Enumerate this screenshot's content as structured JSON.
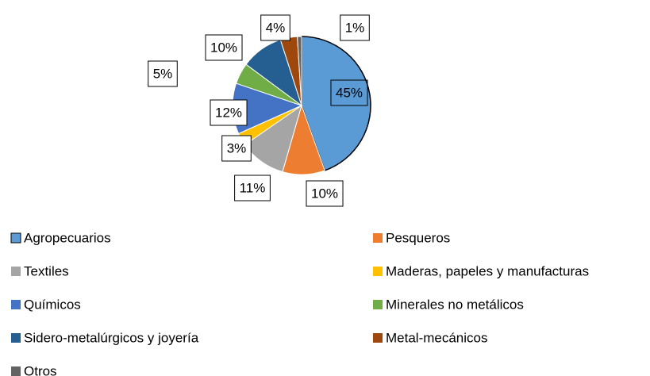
{
  "chart_data": {
    "type": "pie",
    "categories": [
      "Agropecuarios",
      "Pesqueros",
      "Textiles",
      "Maderas, papeles y manufacturas",
      "Químicos",
      "Minerales no metálicos",
      "Sidero-metalúrgicos y joyería",
      "Metal-mecánicos",
      "Otros"
    ],
    "values": [
      45,
      10,
      11,
      3,
      12,
      5,
      10,
      4,
      1
    ],
    "value_labels": [
      "45%",
      "10%",
      "11%",
      "3%",
      "12%",
      "5%",
      "10%",
      "4%",
      "1%"
    ],
    "colors": [
      "#5b9bd5",
      "#ed7d31",
      "#a5a5a5",
      "#ffc000",
      "#4472c4",
      "#70ad47",
      "#255e91",
      "#9e480e",
      "#636363"
    ],
    "legend": "bottom"
  }
}
